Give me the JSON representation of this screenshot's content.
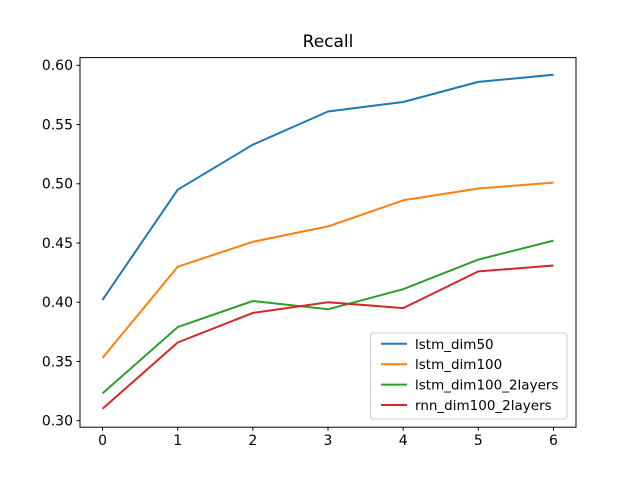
{
  "figure": {
    "background": "#ffffff",
    "spine_color": "#000000",
    "legend_border_color": "#cccccc"
  },
  "chart_data": {
    "type": "line",
    "title": "Recall",
    "xlabel": "",
    "ylabel": "",
    "grid": false,
    "legend_position": "lower right",
    "x": [
      0,
      1,
      2,
      3,
      4,
      5,
      6
    ],
    "xlim": [
      -0.3,
      6.3
    ],
    "ylim": [
      0.2945,
      0.6065
    ],
    "xticks": [
      0,
      1,
      2,
      3,
      4,
      5,
      6
    ],
    "xtick_labels": [
      "0",
      "1",
      "2",
      "3",
      "4",
      "5",
      "6"
    ],
    "yticks": [
      0.3,
      0.35,
      0.4,
      0.45,
      0.5,
      0.55,
      0.6
    ],
    "ytick_labels": [
      "0.30",
      "0.35",
      "0.40",
      "0.45",
      "0.50",
      "0.55",
      "0.60"
    ],
    "series": [
      {
        "name": "lstm_dim50",
        "color": "#1f77b4",
        "values": [
          0.402,
          0.495,
          0.533,
          0.561,
          0.569,
          0.586,
          0.592
        ]
      },
      {
        "name": "lstm_dim100",
        "color": "#ff7f0e",
        "values": [
          0.353,
          0.43,
          0.451,
          0.464,
          0.486,
          0.496,
          0.501
        ]
      },
      {
        "name": "lstm_dim100_2layers",
        "color": "#2ca02c",
        "values": [
          0.323,
          0.379,
          0.401,
          0.394,
          0.411,
          0.436,
          0.452
        ]
      },
      {
        "name": "rnn_dim100_2layers",
        "color": "#d62728",
        "values": [
          0.31,
          0.366,
          0.391,
          0.4,
          0.395,
          0.426,
          0.431
        ]
      }
    ]
  }
}
